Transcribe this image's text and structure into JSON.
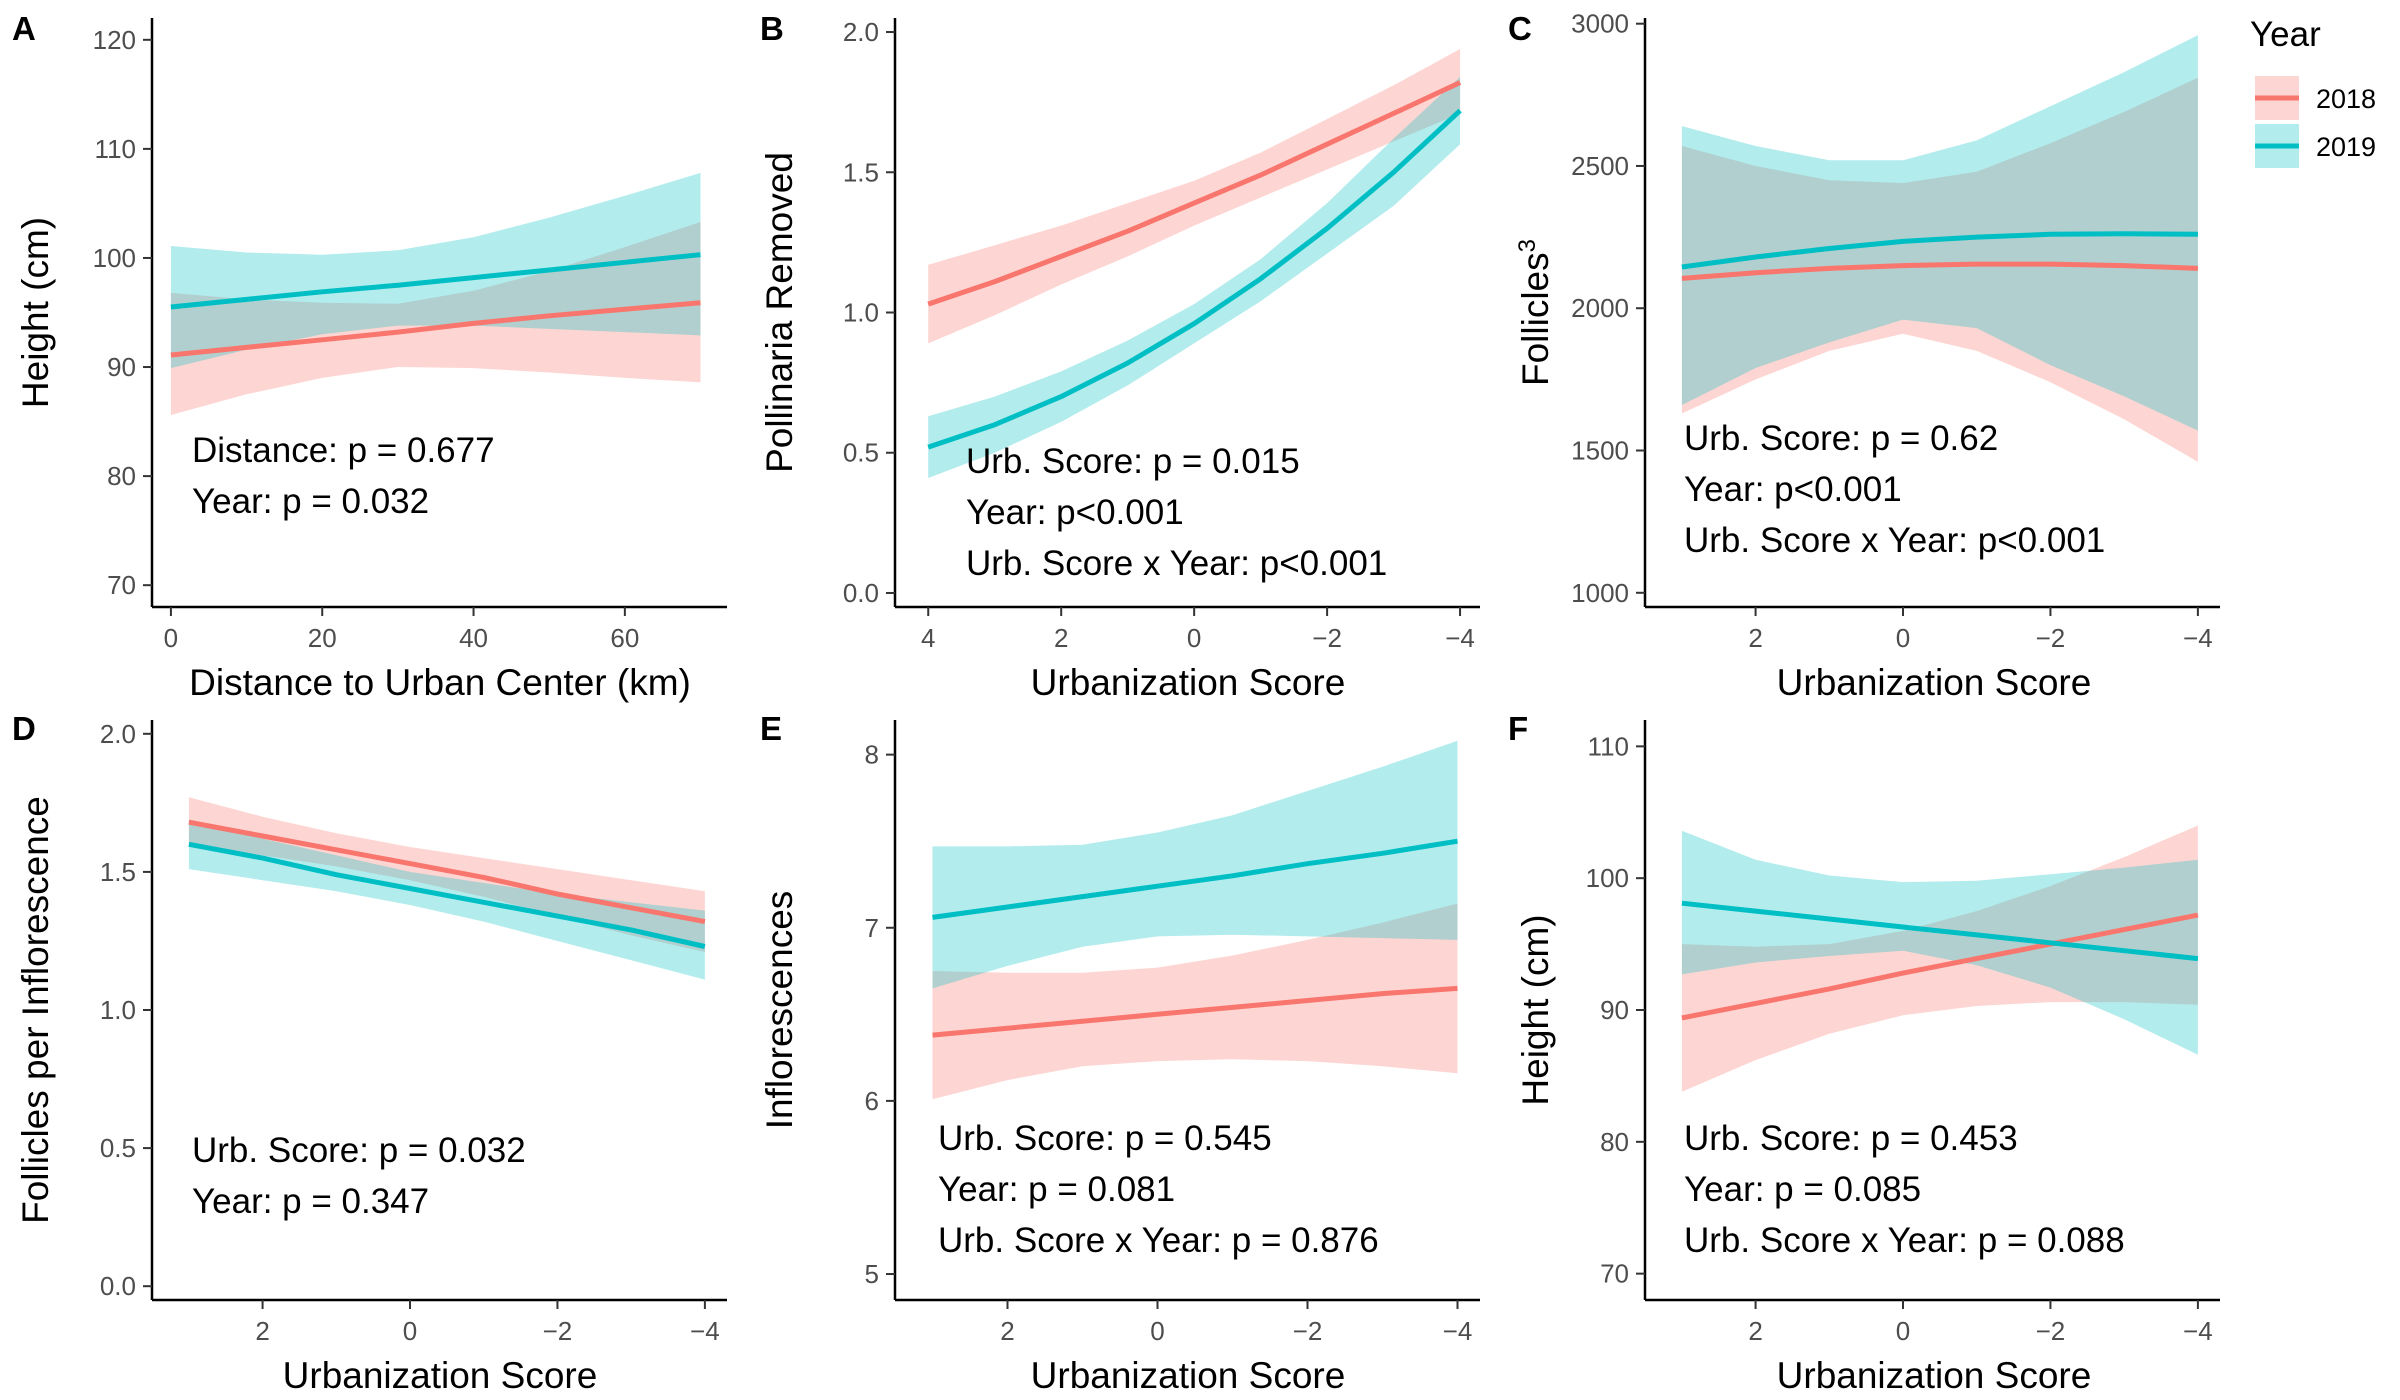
{
  "legend": {
    "title": "Year",
    "items": [
      {
        "label": "2018",
        "color": "#F8766D",
        "fill": "#F8766D"
      },
      {
        "label": "2019",
        "color": "#00BFC4",
        "fill": "#00BFC4"
      }
    ]
  },
  "chart_data": [
    {
      "panel": "A",
      "type": "line",
      "xlabel": "Distance to Urban Center (km)",
      "ylabel": "Height (cm)",
      "xlim": [
        -2.5,
        73.5
      ],
      "ylim": [
        68,
        122
      ],
      "xticks": [
        0,
        20,
        40,
        60
      ],
      "yticks": [
        70,
        80,
        90,
        100,
        110,
        120
      ],
      "annotations": [
        "Distance: p = 0.677",
        "Year: p = 0.032"
      ],
      "series": [
        {
          "name": "2018",
          "x": [
            0,
            10,
            20,
            30,
            40,
            50,
            60,
            70
          ],
          "y": [
            91.1,
            91.8,
            92.5,
            93.2,
            94.0,
            94.7,
            95.3,
            95.9
          ],
          "lower": [
            85.6,
            87.5,
            89.0,
            90.0,
            89.9,
            89.5,
            89.0,
            88.6
          ],
          "upper": [
            96.8,
            96.2,
            95.9,
            95.8,
            97.0,
            98.8,
            101.0,
            103.3
          ]
        },
        {
          "name": "2019",
          "x": [
            0,
            10,
            20,
            30,
            40,
            50,
            60,
            70
          ],
          "y": [
            95.5,
            96.2,
            96.9,
            97.5,
            98.2,
            98.9,
            99.6,
            100.3
          ],
          "lower": [
            89.9,
            91.6,
            93.0,
            93.8,
            93.8,
            93.5,
            93.2,
            92.9
          ],
          "upper": [
            101.1,
            100.5,
            100.3,
            100.7,
            101.9,
            103.7,
            105.7,
            107.8
          ]
        }
      ]
    },
    {
      "panel": "B",
      "type": "line",
      "xlabel": "Urbanization Score",
      "ylabel": "Pollinaria Removed",
      "xlim": [
        4.5,
        -4.3
      ],
      "ylim": [
        -0.05,
        2.05
      ],
      "xticks": [
        4,
        2,
        0,
        -2,
        -4
      ],
      "xtick_labels": [
        "4",
        "2",
        "0",
        "−2",
        "−4"
      ],
      "yticks": [
        0.0,
        0.5,
        1.0,
        1.5,
        2.0
      ],
      "ytick_labels": [
        "0.0",
        "0.5",
        "1.0",
        "1.5",
        "2.0"
      ],
      "annotations": [
        "Urb. Score: p = 0.015",
        "Year: p<0.001",
        "Urb. Score x Year: p<0.001"
      ],
      "series": [
        {
          "name": "2018",
          "x": [
            4,
            3,
            2,
            1,
            0,
            -1,
            -2,
            -3,
            -4
          ],
          "y": [
            1.03,
            1.11,
            1.2,
            1.29,
            1.39,
            1.49,
            1.6,
            1.71,
            1.82
          ],
          "lower": [
            0.89,
            0.99,
            1.1,
            1.2,
            1.31,
            1.41,
            1.51,
            1.61,
            1.71
          ],
          "upper": [
            1.17,
            1.24,
            1.31,
            1.39,
            1.47,
            1.57,
            1.69,
            1.81,
            1.94
          ]
        },
        {
          "name": "2019",
          "x": [
            4,
            3,
            2,
            1,
            0,
            -1,
            -2,
            -3,
            -4
          ],
          "y": [
            0.52,
            0.6,
            0.7,
            0.82,
            0.96,
            1.12,
            1.3,
            1.5,
            1.72
          ],
          "lower": [
            0.41,
            0.5,
            0.61,
            0.74,
            0.89,
            1.04,
            1.21,
            1.38,
            1.6
          ],
          "upper": [
            0.63,
            0.7,
            0.79,
            0.9,
            1.03,
            1.19,
            1.39,
            1.62,
            1.84
          ]
        }
      ]
    },
    {
      "panel": "C",
      "type": "line",
      "xlabel": "Urbanization Score",
      "ylabel": "Follicles",
      "ylabel_superscript": "3",
      "xlim": [
        3.5,
        -4.3
      ],
      "ylim": [
        950,
        3020
      ],
      "xticks": [
        2,
        0,
        -2,
        -4
      ],
      "xtick_labels": [
        "2",
        "0",
        "−2",
        "−4"
      ],
      "yticks": [
        1000,
        1500,
        2000,
        2500,
        3000
      ],
      "annotations": [
        "Urb. Score: p = 0.62",
        "Year: p<0.001",
        "Urb. Score x Year: p<0.001"
      ],
      "series": [
        {
          "name": "2018",
          "x": [
            3,
            2,
            1,
            0,
            -1,
            -2,
            -3,
            -4
          ],
          "y": [
            2105,
            2125,
            2140,
            2150,
            2155,
            2155,
            2150,
            2140
          ],
          "lower": [
            1630,
            1750,
            1850,
            1910,
            1850,
            1740,
            1610,
            1460
          ],
          "upper": [
            2570,
            2500,
            2450,
            2440,
            2480,
            2580,
            2690,
            2810
          ]
        },
        {
          "name": "2019",
          "x": [
            3,
            2,
            1,
            0,
            -1,
            -2,
            -3,
            -4
          ],
          "y": [
            2145,
            2180,
            2210,
            2235,
            2250,
            2260,
            2262,
            2260
          ],
          "lower": [
            1660,
            1790,
            1880,
            1960,
            1930,
            1800,
            1690,
            1570
          ],
          "upper": [
            2640,
            2570,
            2520,
            2520,
            2590,
            2710,
            2830,
            2960
          ]
        }
      ]
    },
    {
      "panel": "D",
      "type": "line",
      "xlabel": "Urbanization Score",
      "ylabel": "Follicles per Inflorescence",
      "xlim": [
        3.5,
        -4.3
      ],
      "ylim": [
        -0.05,
        2.05
      ],
      "xticks": [
        2,
        0,
        -2,
        -4
      ],
      "xtick_labels": [
        "2",
        "0",
        "−2",
        "−4"
      ],
      "yticks": [
        0.0,
        0.5,
        1.0,
        1.5,
        2.0
      ],
      "ytick_labels": [
        "0.0",
        "0.5",
        "1.0",
        "1.5",
        "2.0"
      ],
      "annotations": [
        "Urb. Score: p = 0.032",
        "Year: p = 0.347"
      ],
      "series": [
        {
          "name": "2018",
          "x": [
            3,
            2,
            1,
            0,
            -1,
            -2,
            -3,
            -4
          ],
          "y": [
            1.68,
            1.63,
            1.58,
            1.53,
            1.48,
            1.42,
            1.37,
            1.32
          ],
          "lower": [
            1.59,
            1.56,
            1.52,
            1.47,
            1.41,
            1.34,
            1.27,
            1.21
          ],
          "upper": [
            1.77,
            1.7,
            1.64,
            1.59,
            1.55,
            1.51,
            1.47,
            1.43
          ]
        },
        {
          "name": "2019",
          "x": [
            3,
            2,
            1,
            0,
            -1,
            -2,
            -3,
            -4
          ],
          "y": [
            1.6,
            1.55,
            1.49,
            1.44,
            1.39,
            1.34,
            1.29,
            1.23
          ],
          "lower": [
            1.51,
            1.47,
            1.43,
            1.38,
            1.32,
            1.25,
            1.18,
            1.11
          ],
          "upper": [
            1.69,
            1.62,
            1.56,
            1.5,
            1.46,
            1.42,
            1.39,
            1.36
          ]
        }
      ]
    },
    {
      "panel": "E",
      "type": "line",
      "xlabel": "Urbanization Score",
      "ylabel": "Inflorescences",
      "xlim": [
        3.5,
        -4.3
      ],
      "ylim": [
        4.85,
        8.2
      ],
      "xticks": [
        2,
        0,
        -2,
        -4
      ],
      "xtick_labels": [
        "2",
        "0",
        "−2",
        "−4"
      ],
      "yticks": [
        5,
        6,
        7,
        8
      ],
      "annotations": [
        "Urb. Score: p = 0.545",
        "Year: p = 0.081",
        "Urb. Score x Year: p = 0.876"
      ],
      "series": [
        {
          "name": "2018",
          "x": [
            3,
            2,
            1,
            0,
            -1,
            -2,
            -3,
            -4
          ],
          "y": [
            6.38,
            6.42,
            6.46,
            6.5,
            6.54,
            6.58,
            6.62,
            6.65
          ],
          "lower": [
            6.01,
            6.12,
            6.2,
            6.23,
            6.24,
            6.23,
            6.2,
            6.16
          ],
          "upper": [
            6.75,
            6.74,
            6.74,
            6.77,
            6.84,
            6.93,
            7.03,
            7.14
          ]
        },
        {
          "name": "2019",
          "x": [
            3,
            2,
            1,
            0,
            -1,
            -2,
            -3,
            -4
          ],
          "y": [
            7.06,
            7.12,
            7.18,
            7.24,
            7.3,
            7.37,
            7.43,
            7.5
          ],
          "lower": [
            6.65,
            6.78,
            6.89,
            6.95,
            6.96,
            6.95,
            6.94,
            6.93
          ],
          "upper": [
            7.47,
            7.47,
            7.48,
            7.55,
            7.65,
            7.79,
            7.93,
            8.08
          ]
        }
      ]
    },
    {
      "panel": "F",
      "type": "line",
      "xlabel": "Urbanization Score",
      "ylabel": "Height (cm)",
      "xlim": [
        3.5,
        -4.3
      ],
      "ylim": [
        68,
        112
      ],
      "xticks": [
        2,
        0,
        -2,
        -4
      ],
      "xtick_labels": [
        "2",
        "0",
        "−2",
        "−4"
      ],
      "yticks": [
        70,
        80,
        90,
        100,
        110
      ],
      "annotations": [
        "Urb. Score: p = 0.453",
        "Year: p = 0.085",
        "Urb. Score x Year: p = 0.088"
      ],
      "series": [
        {
          "name": "2018",
          "x": [
            3,
            2,
            1,
            0,
            -1,
            -2,
            -3,
            -4
          ],
          "y": [
            89.4,
            90.5,
            91.6,
            92.8,
            93.9,
            95.0,
            96.1,
            97.2
          ],
          "lower": [
            83.8,
            86.2,
            88.2,
            89.6,
            90.3,
            90.6,
            90.6,
            90.4
          ],
          "upper": [
            95.0,
            94.8,
            95.0,
            96.0,
            97.5,
            99.4,
            101.6,
            104.0
          ]
        },
        {
          "name": "2019",
          "x": [
            3,
            2,
            1,
            0,
            -1,
            -2,
            -3,
            -4
          ],
          "y": [
            98.1,
            97.5,
            96.9,
            96.3,
            95.7,
            95.1,
            94.5,
            93.9
          ],
          "lower": [
            92.7,
            93.6,
            94.1,
            94.5,
            93.4,
            91.7,
            89.3,
            86.6
          ],
          "upper": [
            103.6,
            101.4,
            100.2,
            99.7,
            99.8,
            100.3,
            100.8,
            101.4
          ]
        }
      ]
    }
  ]
}
